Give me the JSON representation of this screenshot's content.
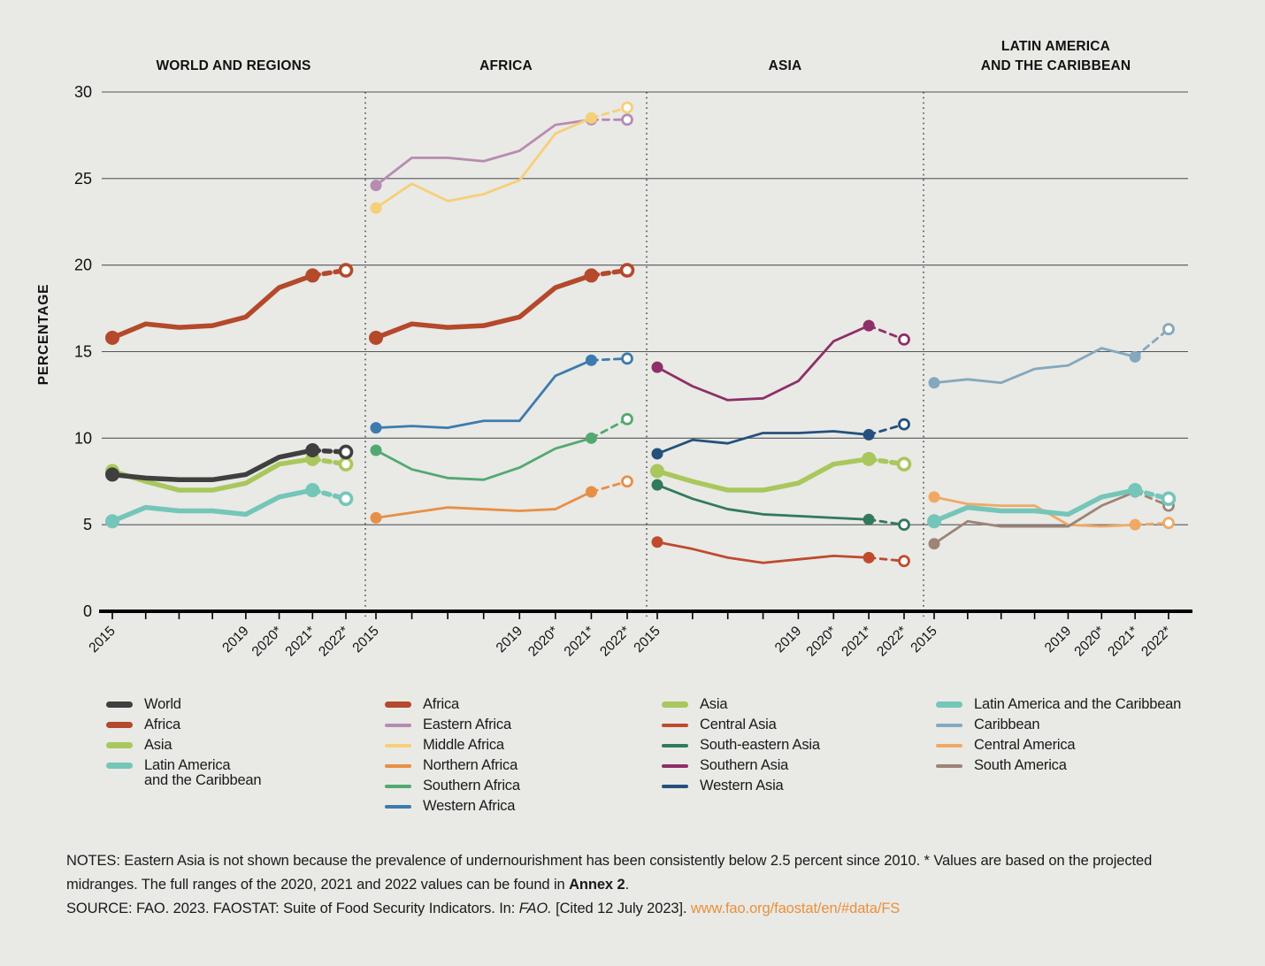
{
  "chart_data": {
    "type": "line",
    "ylabel": "PERCENTAGE",
    "ylim": [
      0,
      30
    ],
    "yticks": [
      0,
      5,
      10,
      15,
      20,
      25,
      30
    ],
    "grid": "horizontal",
    "x_years": [
      2015,
      2016,
      2017,
      2018,
      2019,
      2020,
      2021,
      2022
    ],
    "x_tick_labels": [
      "2015",
      "",
      "",
      "",
      "2019",
      "2020*",
      "2021*",
      "2022*"
    ],
    "marker_style": {
      "filled_at": [
        "2015",
        "2021"
      ],
      "open_at": [
        "2022"
      ],
      "dashed_segment": "2021-2022"
    },
    "panels": [
      {
        "title_lines": [
          "WORLD AND REGIONS"
        ],
        "series": [
          {
            "name": "Africa",
            "color": "#b4492c",
            "thick": true,
            "values": [
              15.8,
              16.6,
              16.4,
              16.5,
              17.0,
              18.7,
              19.4,
              19.7
            ]
          },
          {
            "name": "Latin America and the Caribbean",
            "color": "#74c6b8",
            "thick": true,
            "values": [
              5.2,
              6.0,
              5.8,
              5.8,
              5.6,
              6.6,
              7.0,
              6.5
            ]
          },
          {
            "name": "Asia",
            "color": "#a9c75c",
            "thick": true,
            "values": [
              8.1,
              7.5,
              7.0,
              7.0,
              7.4,
              8.5,
              8.8,
              8.5
            ]
          },
          {
            "name": "World",
            "color": "#3f3f3f",
            "thick": true,
            "values": [
              7.9,
              7.7,
              7.6,
              7.6,
              7.9,
              8.9,
              9.3,
              9.2
            ]
          }
        ]
      },
      {
        "title_lines": [
          "AFRICA"
        ],
        "series": [
          {
            "name": "Eastern Africa",
            "color": "#b78cb1",
            "thick": false,
            "values": [
              24.6,
              26.2,
              26.2,
              26.0,
              26.6,
              28.1,
              28.4,
              28.4
            ]
          },
          {
            "name": "Middle Africa",
            "color": "#f6d077",
            "thick": false,
            "values": [
              23.3,
              24.7,
              23.7,
              24.1,
              24.9,
              27.6,
              28.5,
              29.1
            ]
          },
          {
            "name": "Northern Africa",
            "color": "#e78f45",
            "thick": false,
            "values": [
              5.4,
              5.7,
              6.0,
              5.9,
              5.8,
              5.9,
              6.9,
              7.5
            ]
          },
          {
            "name": "Southern Africa",
            "color": "#52a96f",
            "thick": false,
            "values": [
              9.3,
              8.2,
              7.7,
              7.6,
              8.3,
              9.4,
              10.0,
              11.1
            ]
          },
          {
            "name": "Western Africa",
            "color": "#3d7bae",
            "thick": false,
            "values": [
              10.6,
              10.7,
              10.6,
              11.0,
              11.0,
              13.6,
              14.5,
              14.6
            ]
          },
          {
            "name": "Africa",
            "color": "#b4492c",
            "thick": true,
            "values": [
              15.8,
              16.6,
              16.4,
              16.5,
              17.0,
              18.7,
              19.4,
              19.7
            ]
          }
        ]
      },
      {
        "title_lines": [
          "ASIA"
        ],
        "series": [
          {
            "name": "Central Asia",
            "color": "#bf4b2c",
            "thick": false,
            "values": [
              4.0,
              3.6,
              3.1,
              2.8,
              3.0,
              3.2,
              3.1,
              2.9
            ]
          },
          {
            "name": "South-eastern Asia",
            "color": "#317a5e",
            "thick": false,
            "values": [
              7.3,
              6.5,
              5.9,
              5.6,
              5.5,
              5.4,
              5.3,
              5.0
            ]
          },
          {
            "name": "Southern Asia",
            "color": "#8e2f68",
            "thick": false,
            "values": [
              14.1,
              13.0,
              12.2,
              12.3,
              13.3,
              15.6,
              16.5,
              15.7
            ]
          },
          {
            "name": "Western Asia",
            "color": "#24517c",
            "thick": false,
            "values": [
              9.1,
              9.9,
              9.7,
              10.3,
              10.3,
              10.4,
              10.2,
              10.8
            ]
          },
          {
            "name": "Asia",
            "color": "#a9c75c",
            "thick": true,
            "values": [
              8.1,
              7.5,
              7.0,
              7.0,
              7.4,
              8.5,
              8.8,
              8.5
            ]
          }
        ]
      },
      {
        "title_lines": [
          "LATIN AMERICA",
          "AND THE CARIBBEAN"
        ],
        "series": [
          {
            "name": "Caribbean",
            "color": "#84a8bd",
            "thick": false,
            "values": [
              13.2,
              13.4,
              13.2,
              14.0,
              14.2,
              15.2,
              14.7,
              16.3
            ]
          },
          {
            "name": "Central America",
            "color": "#f0a964",
            "thick": false,
            "values": [
              6.6,
              6.2,
              6.1,
              6.1,
              5.0,
              4.9,
              5.0,
              5.1
            ]
          },
          {
            "name": "South America",
            "color": "#9d8476",
            "thick": false,
            "values": [
              3.9,
              5.2,
              4.9,
              4.9,
              4.9,
              6.1,
              6.9,
              6.1
            ]
          },
          {
            "name": "Latin America and the Caribbean",
            "color": "#74c6b8",
            "thick": true,
            "values": [
              5.2,
              6.0,
              5.8,
              5.8,
              5.6,
              6.6,
              7.0,
              6.5
            ]
          }
        ]
      }
    ],
    "legend_columns": [
      {
        "items": [
          {
            "lines": [
              "World"
            ],
            "color": "#3f3f3f",
            "thick": true
          },
          {
            "lines": [
              "Africa"
            ],
            "color": "#b4492c",
            "thick": true
          },
          {
            "lines": [
              "Asia"
            ],
            "color": "#a9c75c",
            "thick": true
          },
          {
            "lines": [
              "Latin America",
              "and the Caribbean"
            ],
            "color": "#74c6b8",
            "thick": true
          }
        ]
      },
      {
        "items": [
          {
            "lines": [
              "Africa"
            ],
            "color": "#b4492c",
            "thick": true
          },
          {
            "lines": [
              "Eastern Africa"
            ],
            "color": "#b78cb1",
            "thick": false
          },
          {
            "lines": [
              "Middle Africa"
            ],
            "color": "#f6d077",
            "thick": false
          },
          {
            "lines": [
              "Northern Africa"
            ],
            "color": "#e78f45",
            "thick": false
          },
          {
            "lines": [
              "Southern Africa"
            ],
            "color": "#52a96f",
            "thick": false
          },
          {
            "lines": [
              "Western Africa"
            ],
            "color": "#3d7bae",
            "thick": false
          }
        ]
      },
      {
        "items": [
          {
            "lines": [
              "Asia"
            ],
            "color": "#a9c75c",
            "thick": true
          },
          {
            "lines": [
              "Central Asia"
            ],
            "color": "#bf4b2c",
            "thick": false
          },
          {
            "lines": [
              "South-eastern Asia"
            ],
            "color": "#317a5e",
            "thick": false
          },
          {
            "lines": [
              "Southern Asia"
            ],
            "color": "#8e2f68",
            "thick": false
          },
          {
            "lines": [
              "Western Asia"
            ],
            "color": "#24517c",
            "thick": false
          }
        ]
      },
      {
        "items": [
          {
            "lines": [
              "Latin America and the Caribbean"
            ],
            "color": "#74c6b8",
            "thick": true
          },
          {
            "lines": [
              "Caribbean"
            ],
            "color": "#84a8bd",
            "thick": false
          },
          {
            "lines": [
              "Central America"
            ],
            "color": "#f0a964",
            "thick": false
          },
          {
            "lines": [
              "South America"
            ],
            "color": "#9d8476",
            "thick": false
          }
        ]
      }
    ]
  },
  "notes": {
    "notes_text_1": "NOTES: Eastern Asia is not shown because the prevalence of undernourishment has been consistently below 2.5 percent since 2010. * Values are based on the projected midranges. The full ranges of the 2020, 2021 and 2022 values can be found in ",
    "notes_bold": "Annex 2",
    "notes_end": ".",
    "source_prefix": "SOURCE: FAO. 2023. FAOSTAT: Suite of Food Security Indicators. In: ",
    "source_italic": "FAO.",
    "source_mid": " [Cited 12 July 2023]. ",
    "source_link": "www.fao.org/faostat/en/#data/FS",
    "link_color": "#e8913b"
  }
}
